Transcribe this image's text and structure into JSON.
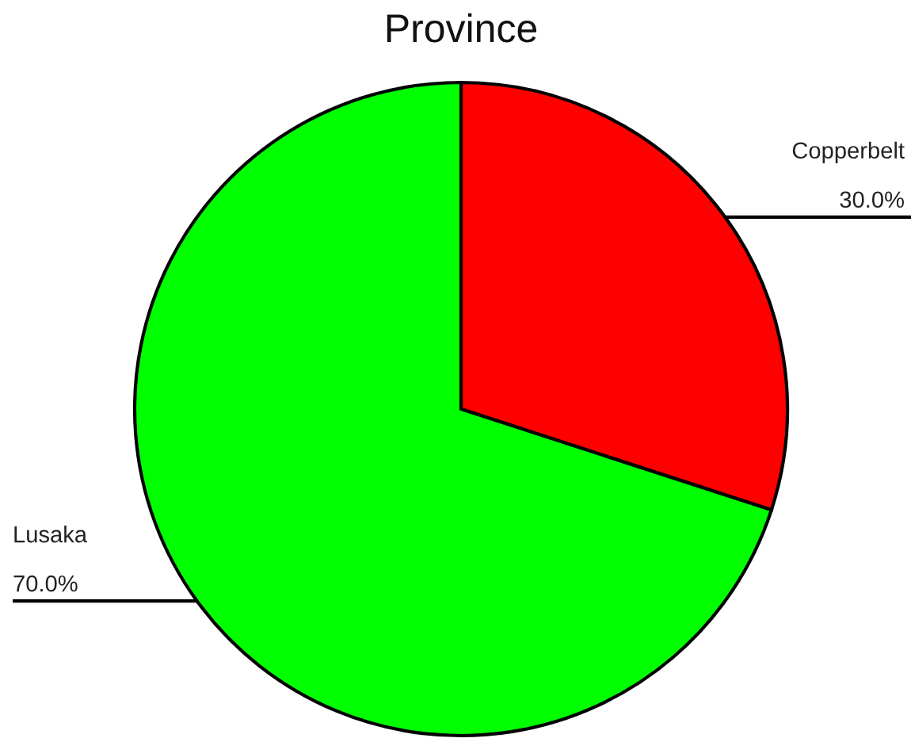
{
  "chart_data": {
    "type": "pie",
    "title": "Province",
    "categories": [
      "Copperbelt",
      "Lusaka"
    ],
    "values": [
      30,
      70
    ],
    "colors": [
      "#ff0000",
      "#00ff00"
    ],
    "value_labels": [
      "30.0%",
      "70.0%"
    ]
  }
}
